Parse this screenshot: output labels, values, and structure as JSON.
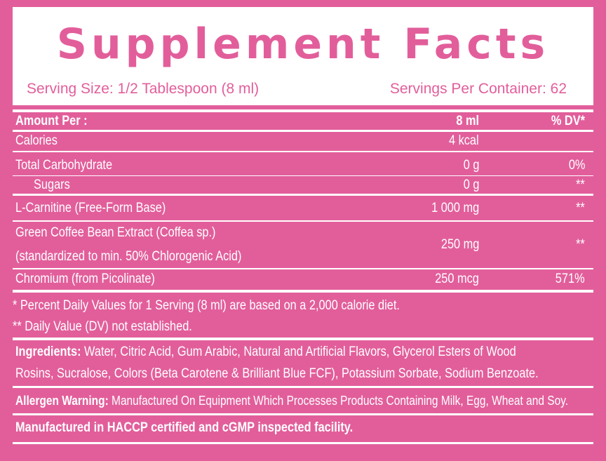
{
  "header": {
    "title": "Supplement Facts",
    "serving_size": "Serving Size: 1/2 Tablespoon (8 ml)",
    "servings_per_container": "Servings Per Container: 62"
  },
  "table": {
    "columns": [
      "Amount Per :",
      "8 ml",
      "% DV*"
    ],
    "rows": [
      {
        "name": [
          "Calories"
        ],
        "amount": "4 kcal"
      },
      {
        "name": [
          "Total Carbohydrate"
        ],
        "amount": "0 g",
        "dv": "0%"
      },
      {
        "name": [
          "Sugars"
        ],
        "amount": "0 g",
        "dv": "**"
      },
      {
        "name": [
          "L-Carnitine (Free-Form Base)"
        ],
        "amount": "1 000 mg",
        "dv": "**"
      },
      {
        "name": [
          "Green Coffee Bean Extract (Coffea sp.)",
          "(standardized to min. 50% Chlorogenic Acid)"
        ],
        "amount": "250 mg",
        "dv": "**"
      },
      {
        "name": [
          "Chromium (from Picolinate)"
        ],
        "amount": "250 mcg",
        "dv": "571%"
      }
    ]
  },
  "footnotes": [
    "* Percent Daily Values for 1 Serving (8 ml) are based on a 2,000 calorie diet.",
    "** Daily Value (DV) not established."
  ],
  "ingredients": {
    "label": "Ingredients:",
    "text": [
      "Water, Citric Acid, Gum Arabic, Natural and Artificial Flavors, Glycerol Esters of Wood",
      "Rosins, Sucralose, Colors (Beta Carotene & Brilliant Blue FCF), Potassium Sorbate, Sodium Benzoate."
    ]
  },
  "allergen": {
    "label": "Allergen Warning:",
    "text": "Manufactured On Equipment Which Processes Products Containing Milk, Egg, Wheat and Soy."
  },
  "manufactured": "Manufactured in HACCP certified and cGMP inspected facility."
}
